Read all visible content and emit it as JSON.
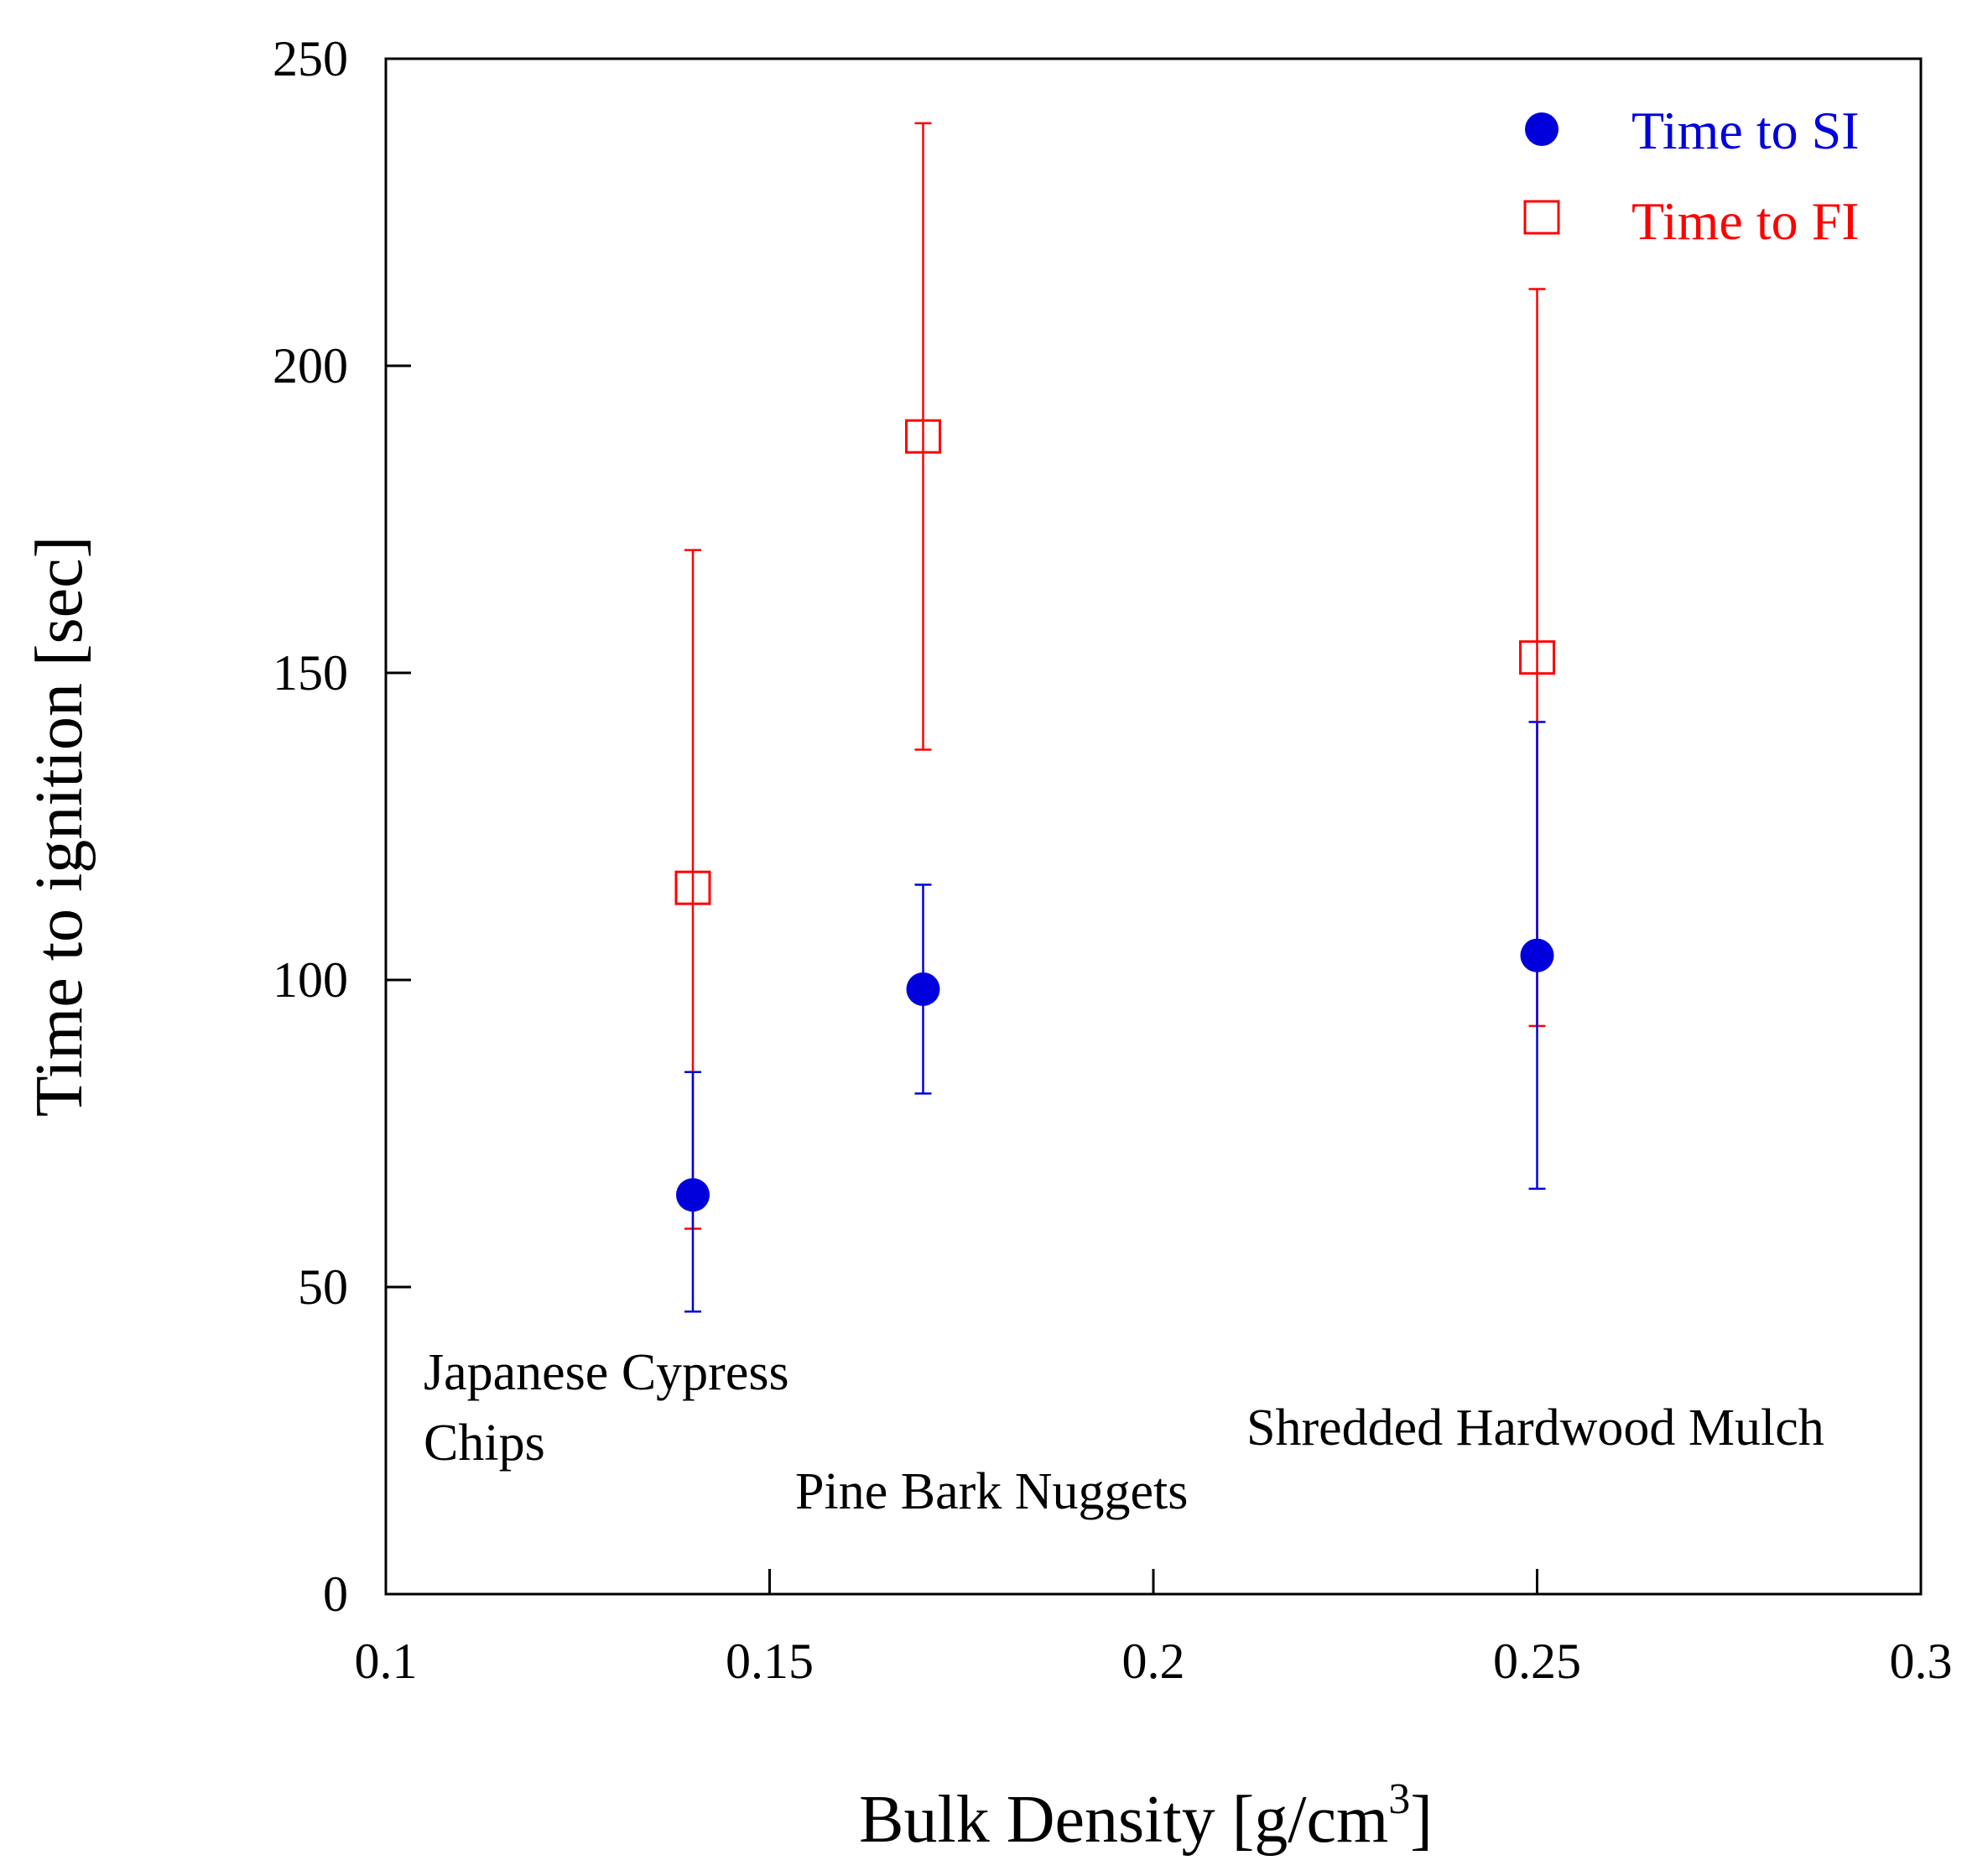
{
  "chart_data": {
    "type": "scatter",
    "title": "",
    "xlabel": "Bulk Density [g/cm",
    "xlabel_superscript": "3",
    "xlabel_suffix": "]",
    "ylabel": "Time to ignition [sec]",
    "xlim": [
      0.1,
      0.3
    ],
    "ylim": [
      0,
      250
    ],
    "xticks": [
      0.1,
      0.15,
      0.2,
      0.25,
      0.3
    ],
    "xtick_labels": [
      "0.1",
      "0.15",
      "0.2",
      "0.25",
      "0.3"
    ],
    "yticks": [
      0,
      50,
      100,
      150,
      200,
      250
    ],
    "ytick_labels": [
      "0",
      "50",
      "100",
      "150",
      "200",
      "250"
    ],
    "grid": false,
    "legend_position": "top-right",
    "series": [
      {
        "name": "Time to SI",
        "marker": "filled-circle",
        "color": "#0000dd",
        "points": [
          {
            "x": 0.14,
            "y": 65,
            "err_low": 46,
            "err_high": 85
          },
          {
            "x": 0.17,
            "y": 98.5,
            "err_low": 81.5,
            "err_high": 115.5
          },
          {
            "x": 0.25,
            "y": 104,
            "err_low": 66,
            "err_high": 142
          }
        ]
      },
      {
        "name": "Time to FI",
        "marker": "open-square",
        "color": "#ff0000",
        "points": [
          {
            "x": 0.14,
            "y": 115,
            "err_low": 59.5,
            "err_high": 170
          },
          {
            "x": 0.17,
            "y": 188.5,
            "err_low": 137.5,
            "err_high": 239.5
          },
          {
            "x": 0.25,
            "y": 152.5,
            "err_low": 92.5,
            "err_high": 212.5
          }
        ]
      }
    ],
    "annotations": [
      {
        "lines": [
          "Japanese Cypress",
          "Chips"
        ]
      },
      {
        "lines": [
          "Pine Bark Nuggets"
        ]
      },
      {
        "lines": [
          "Shredded Hardwood Mulch"
        ]
      }
    ]
  }
}
